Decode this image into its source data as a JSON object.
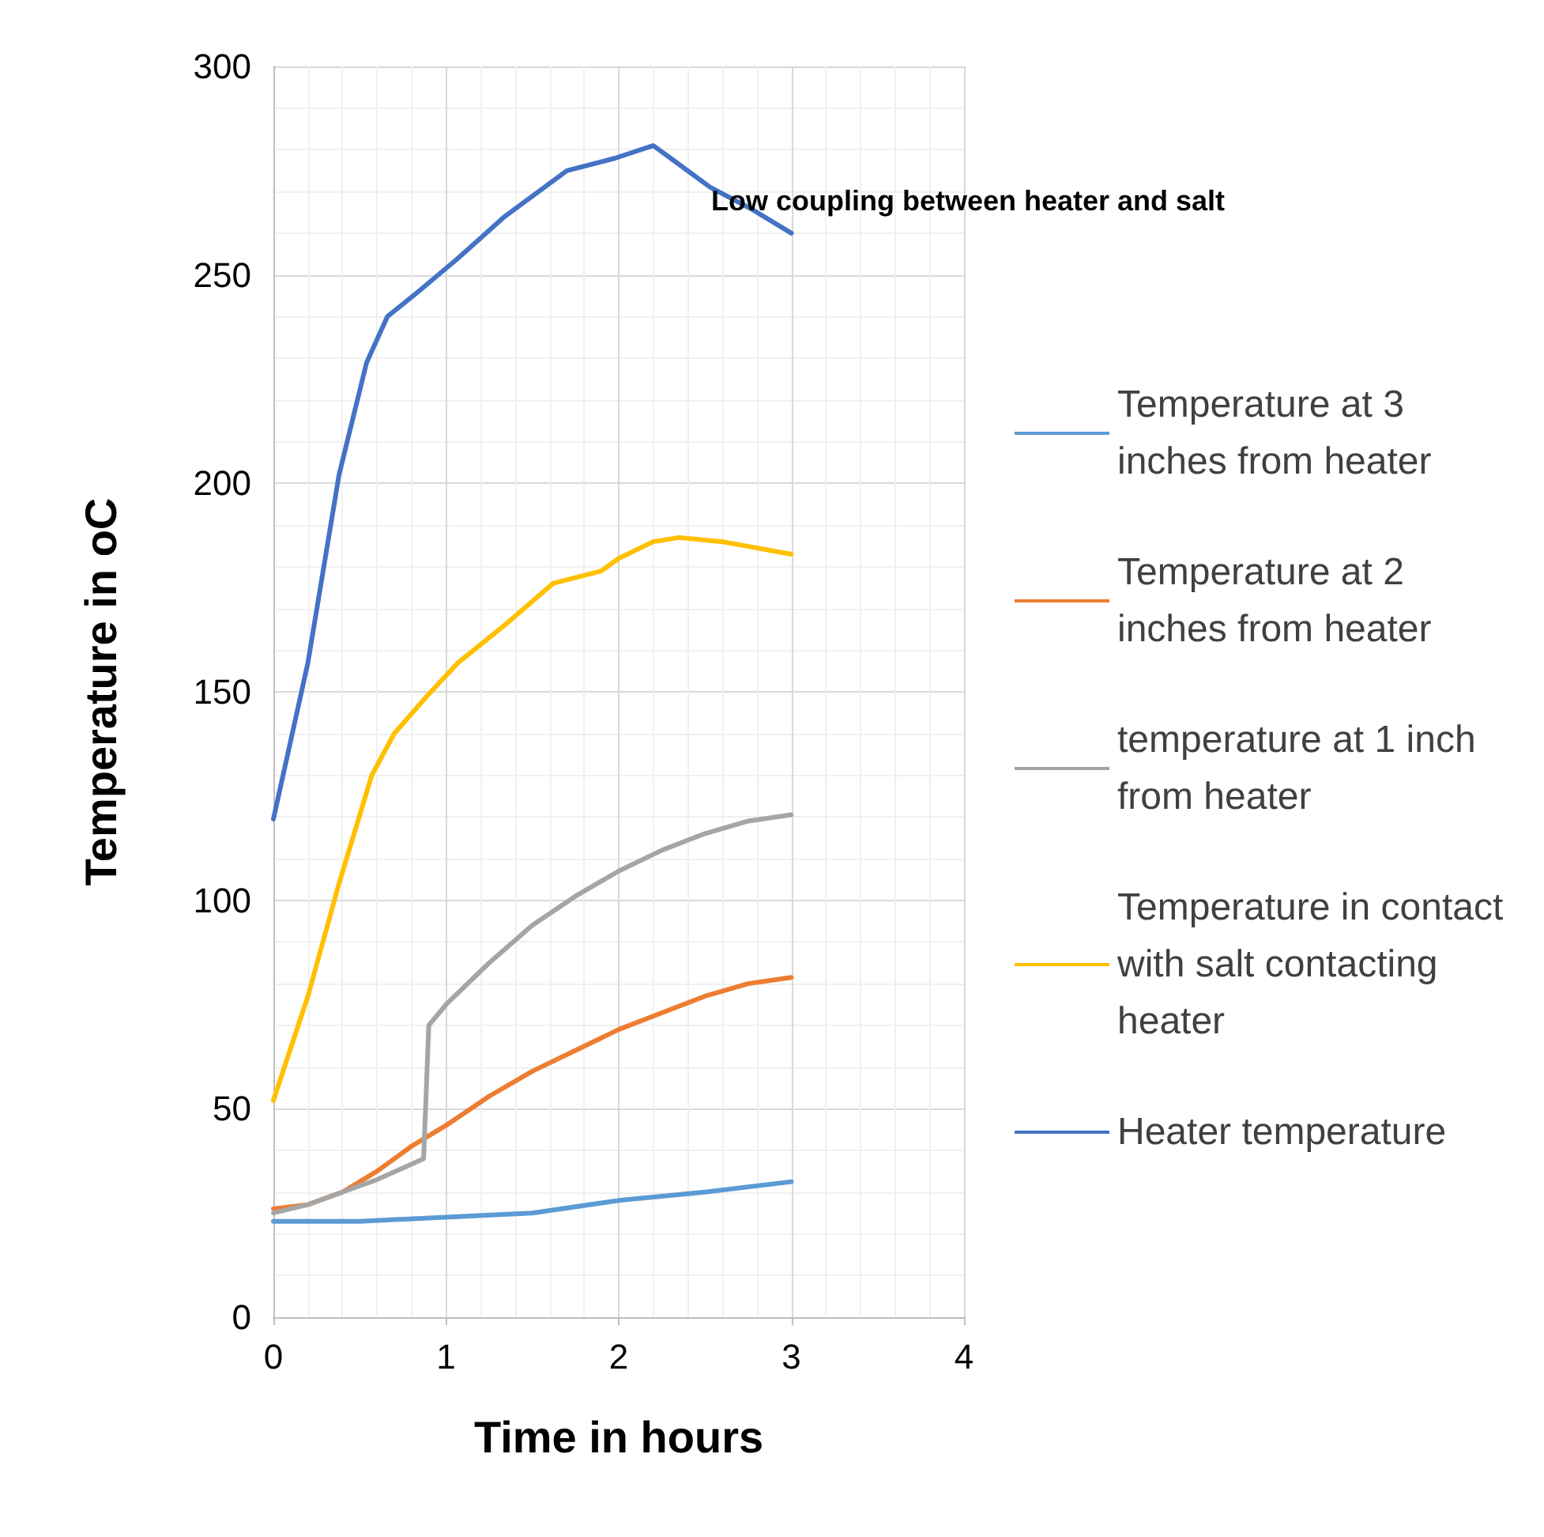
{
  "chart_data": {
    "type": "line",
    "title": "Low coupling between heater and salt",
    "xlabel": "Time in hours",
    "ylabel": "Temperature in oC",
    "xlim": [
      0,
      4
    ],
    "xticks": [
      0,
      1,
      2,
      3,
      4
    ],
    "ylim": [
      0,
      300
    ],
    "yticks": [
      0,
      50,
      100,
      150,
      200,
      250,
      300
    ],
    "grid": true,
    "legend": "right",
    "marker": "none",
    "line_style": "solid",
    "series": [
      {
        "name": "Temperature at 3 inches from heater",
        "color": "#5b9bd5",
        "x": [
          0,
          0.5,
          1,
          1.5,
          2,
          2.5,
          3
        ],
        "values": [
          23,
          23,
          24,
          25,
          28,
          30,
          32.5
        ]
      },
      {
        "name": "Temperature at 2 inches from heater",
        "color": "#ed7d31",
        "x": [
          0,
          0.2,
          0.4,
          0.6,
          0.8,
          1,
          1.25,
          1.5,
          1.75,
          2,
          2.25,
          2.5,
          2.75,
          3
        ],
        "values": [
          26,
          27,
          30,
          35,
          41,
          46,
          53,
          59,
          64,
          69,
          73,
          77,
          80,
          81.5
        ]
      },
      {
        "name": "temperature at 1 inch from heater",
        "color": "#a5a5a5",
        "x": [
          0,
          0.2,
          0.4,
          0.6,
          0.87,
          0.9,
          1,
          1.25,
          1.5,
          1.75,
          2,
          2.25,
          2.5,
          2.75,
          3
        ],
        "values": [
          25,
          27,
          30,
          33,
          38,
          70,
          75,
          85,
          94,
          101,
          107,
          112,
          116,
          119,
          120.5
        ]
      },
      {
        "name": "Temperature in contact with salt contacting heater",
        "color": "#ffc000",
        "x": [
          0,
          0.2,
          0.38,
          0.57,
          0.7,
          0.89,
          1.07,
          1.34,
          1.62,
          1.9,
          2,
          2.2,
          2.35,
          2.6,
          3
        ],
        "values": [
          52,
          77,
          104,
          130,
          140,
          149,
          157,
          166,
          176,
          179,
          182,
          186,
          187,
          186,
          183
        ]
      },
      {
        "name": "Heater temperature",
        "color": "#4472c4",
        "x": [
          0,
          0.2,
          0.38,
          0.54,
          0.66,
          0.84,
          1.07,
          1.34,
          1.7,
          1.98,
          2.2,
          2.3,
          2.53,
          2.76,
          3
        ],
        "values": [
          119.5,
          157,
          202,
          229,
          240,
          246,
          254,
          264,
          275,
          278,
          281,
          278,
          271,
          266,
          260
        ]
      }
    ]
  }
}
